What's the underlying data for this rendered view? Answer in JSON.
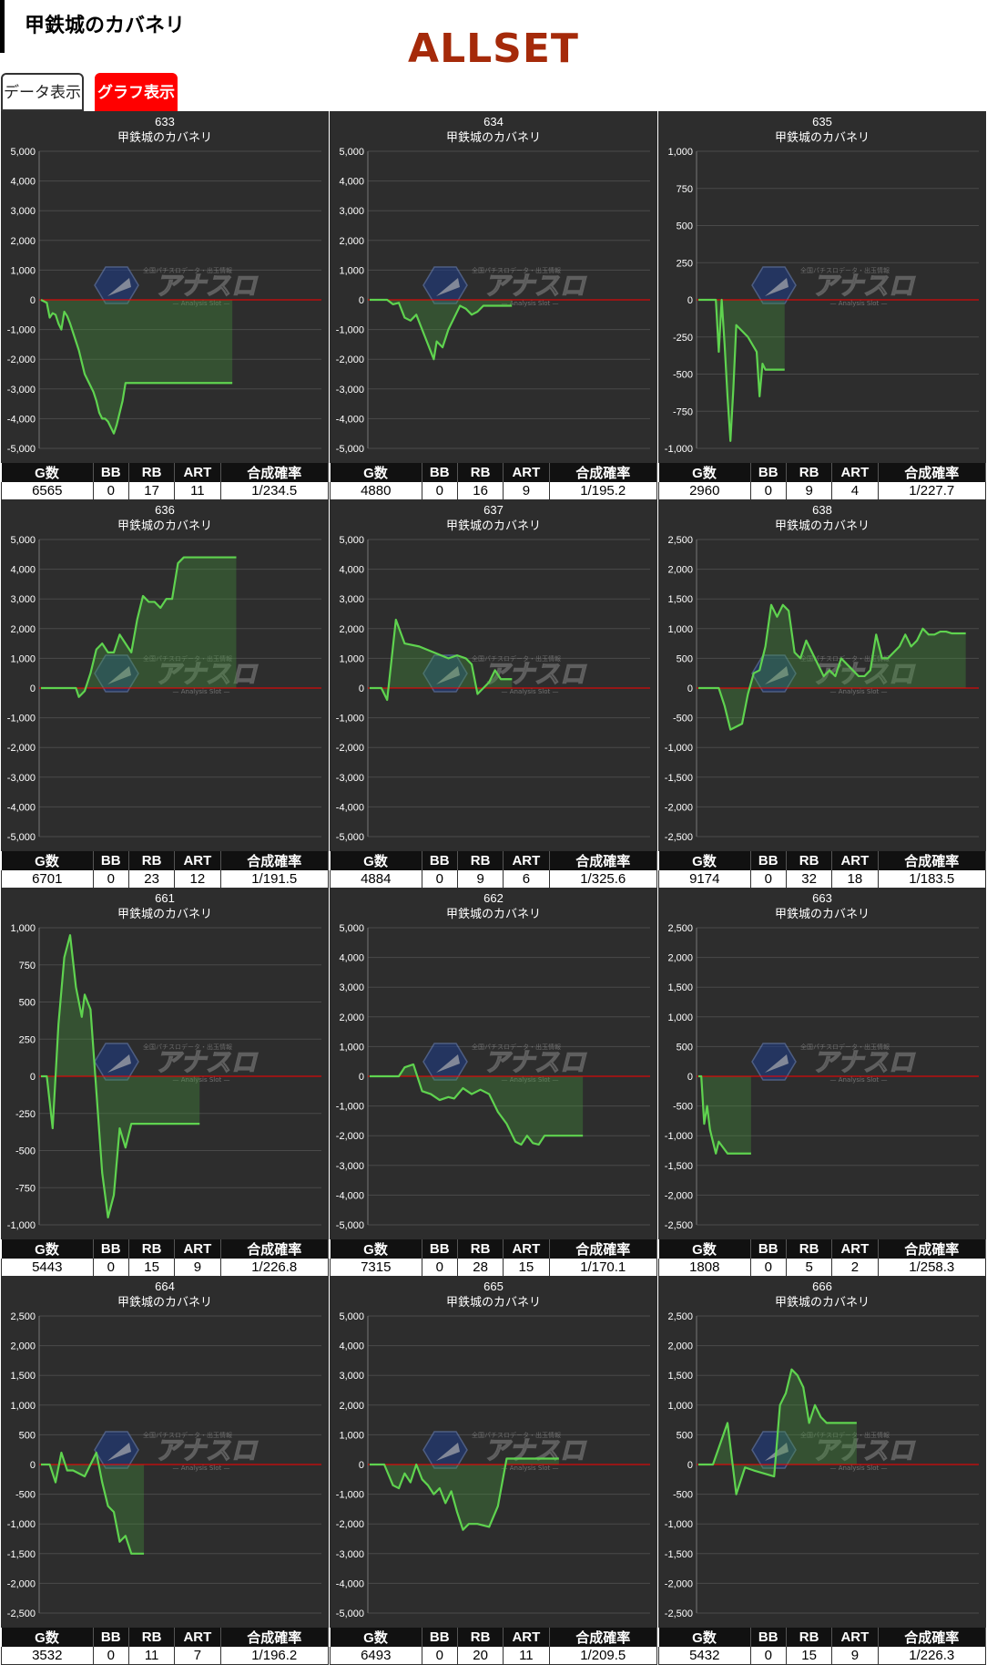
{
  "header": {
    "title": "甲鉄城のカバネリ",
    "set_label": "ALLSET"
  },
  "tabs": {
    "data_label": "データ表示",
    "graph_label": "グラフ表示"
  },
  "table_headers": [
    "G数",
    "BB",
    "RB",
    "ART",
    "合成確率"
  ],
  "watermark": {
    "brand": "アナスロ",
    "subtitle": "— Analysis Slot —",
    "tagline": "全国パチスロデータ・出玉情報"
  },
  "colors": {
    "panel_bg": "#2d2d2d",
    "line": "#5fd34f",
    "fill": "rgba(70,150,60,0.35)",
    "zero_line": "#ff0000",
    "grid": "#4a4a4a"
  },
  "machine_name": "甲鉄城のカバネリ",
  "chart_data": [
    {
      "type": "line",
      "title": "633",
      "subtitle": "甲鉄城のカバネリ",
      "ylim": [
        -5000,
        5000
      ],
      "yticks": [
        5000,
        4000,
        3000,
        2000,
        1000,
        0,
        -1000,
        -2000,
        -3000,
        -4000,
        -5000
      ],
      "x": [
        0,
        100,
        200,
        300,
        400,
        500,
        600,
        700,
        800,
        900,
        1000,
        1100,
        1200,
        1300,
        1400,
        1500,
        1600,
        1700,
        1800,
        1900,
        2000,
        2100,
        2200,
        2300,
        2400,
        2500,
        2600,
        2700,
        2800,
        2900,
        3000,
        3100,
        3200,
        3300,
        3400,
        3500,
        3600,
        3700,
        3800,
        3900,
        4000,
        4100,
        4200,
        4300,
        4400,
        4500,
        4600,
        4700,
        4800,
        4900,
        5000,
        5100,
        5200,
        5300,
        5400,
        5500,
        5600,
        5700,
        5800,
        5900,
        6000,
        6100,
        6200,
        6300,
        6400,
        6565
      ],
      "y": [
        0,
        -50,
        -100,
        -600,
        -450,
        -500,
        -800,
        -1000,
        -400,
        -550,
        -800,
        -1100,
        -1400,
        -1700,
        -2100,
        -2500,
        -2700,
        -2900,
        -3100,
        -3400,
        -3800,
        -4000,
        -4000,
        -4100,
        -4300,
        -4500,
        -4200,
        -3800,
        -3400,
        -2800,
        -2800,
        -2800,
        -2800,
        -2800,
        -2800,
        -2800,
        -2800,
        -2800,
        -2800,
        -2800,
        -2800,
        -2800,
        -2800,
        -2800,
        -2800,
        -2800,
        -2800,
        -2800,
        -2800,
        -2800,
        -2800,
        -2800,
        -2800,
        -2800,
        -2800,
        -2800,
        -2800,
        -2800,
        -2800,
        -2800,
        -2800,
        -2800,
        -2800,
        -2800,
        -2800,
        -2800
      ],
      "stats": {
        "games": "6565",
        "bb": "0",
        "rb": "17",
        "art": "11",
        "prob": "1/234.5"
      }
    },
    {
      "type": "line",
      "title": "634",
      "subtitle": "甲鉄城のカバネリ",
      "ylim": [
        -5000,
        5000
      ],
      "yticks": [
        5000,
        4000,
        3000,
        2000,
        1000,
        0,
        -1000,
        -2000,
        -3000,
        -4000,
        -5000
      ],
      "x": [
        0,
        300,
        600,
        800,
        1000,
        1200,
        1400,
        1600,
        1800,
        2000,
        2200,
        2300,
        2500,
        2700,
        2900,
        3100,
        3300,
        3500,
        3700,
        3900,
        4200,
        4500,
        4880
      ],
      "y": [
        0,
        0,
        0,
        -150,
        -100,
        -600,
        -700,
        -500,
        -1000,
        -1500,
        -2000,
        -1400,
        -1600,
        -1000,
        -600,
        -200,
        -300,
        -500,
        -400,
        -200,
        -200,
        -200,
        -200
      ],
      "stats": {
        "games": "4880",
        "bb": "0",
        "rb": "16",
        "art": "9",
        "prob": "1/195.2"
      }
    },
    {
      "type": "line",
      "title": "635",
      "subtitle": "甲鉄城のカバネリ",
      "ylim": [
        -1000,
        1000
      ],
      "yticks": [
        1000,
        750,
        500,
        250,
        0,
        -250,
        -500,
        -750,
        -1000
      ],
      "x": [
        0,
        300,
        600,
        700,
        800,
        900,
        1000,
        1100,
        1200,
        1300,
        1700,
        2000,
        2100,
        2200,
        2300,
        2400,
        2960
      ],
      "y": [
        0,
        0,
        0,
        -350,
        0,
        -300,
        -650,
        -950,
        -600,
        -170,
        -250,
        -350,
        -650,
        -430,
        -470,
        -470,
        -470
      ],
      "stats": {
        "games": "2960",
        "bb": "0",
        "rb": "9",
        "art": "4",
        "prob": "1/227.7"
      }
    },
    {
      "type": "line",
      "title": "636",
      "subtitle": "甲鉄城のカバネリ",
      "ylim": [
        -5000,
        5000
      ],
      "yticks": [
        5000,
        4000,
        3000,
        2000,
        1000,
        0,
        -1000,
        -2000,
        -3000,
        -4000,
        -5000
      ],
      "x": [
        0,
        500,
        1000,
        1200,
        1300,
        1500,
        1700,
        1900,
        2100,
        2300,
        2500,
        2700,
        2900,
        3100,
        3300,
        3500,
        3700,
        3900,
        4100,
        4300,
        4500,
        4700,
        4900,
        5100,
        5300,
        5500,
        5700,
        6000,
        6701
      ],
      "y": [
        0,
        0,
        0,
        0,
        -300,
        -100,
        500,
        1300,
        1500,
        1200,
        1200,
        1800,
        1500,
        1200,
        2300,
        3100,
        2900,
        2900,
        2700,
        3000,
        3000,
        4200,
        4400,
        4400,
        4400,
        4400,
        4400,
        4400,
        4400
      ],
      "stats": {
        "games": "6701",
        "bb": "0",
        "rb": "23",
        "art": "12",
        "prob": "1/191.5"
      }
    },
    {
      "type": "line",
      "title": "637",
      "subtitle": "甲鉄城のカバネリ",
      "ylim": [
        -5000,
        5000
      ],
      "yticks": [
        5000,
        4000,
        3000,
        2000,
        1000,
        0,
        -1000,
        -2000,
        -3000,
        -4000,
        -5000
      ],
      "x": [
        0,
        400,
        600,
        900,
        1200,
        1700,
        2200,
        2700,
        3000,
        3300,
        3500,
        3700,
        3900,
        4100,
        4300,
        4500,
        4884
      ],
      "y": [
        0,
        0,
        -400,
        2300,
        1500,
        1400,
        1200,
        1000,
        1100,
        1000,
        800,
        -200,
        0,
        200,
        600,
        300,
        300
      ],
      "stats": {
        "games": "4884",
        "bb": "0",
        "rb": "9",
        "art": "6",
        "prob": "1/325.6"
      }
    },
    {
      "type": "line",
      "title": "638",
      "subtitle": "甲鉄城のカバネリ",
      "ylim": [
        -2500,
        2500
      ],
      "yticks": [
        2500,
        2000,
        1500,
        1000,
        500,
        0,
        -500,
        -1000,
        -1500,
        -2000,
        -2500
      ],
      "x": [
        0,
        700,
        900,
        1100,
        1300,
        1500,
        1700,
        1900,
        2100,
        2300,
        2500,
        2700,
        2900,
        3100,
        3300,
        3500,
        3700,
        3900,
        4100,
        4300,
        4500,
        4700,
        4900,
        5100,
        5300,
        5500,
        5700,
        5900,
        6100,
        6300,
        6500,
        6700,
        6900,
        7100,
        7300,
        7500,
        7700,
        7900,
        8100,
        8300,
        8500,
        8700,
        8900,
        9174
      ],
      "y": [
        0,
        0,
        -300,
        -700,
        -650,
        -600,
        -100,
        250,
        300,
        700,
        1400,
        1200,
        1400,
        1300,
        600,
        500,
        800,
        600,
        400,
        200,
        300,
        200,
        500,
        400,
        300,
        200,
        200,
        300,
        900,
        500,
        500,
        600,
        700,
        900,
        700,
        800,
        1000,
        900,
        900,
        950,
        950,
        920,
        920,
        920
      ],
      "stats": {
        "games": "9174",
        "bb": "0",
        "rb": "32",
        "art": "18",
        "prob": "1/183.5"
      }
    },
    {
      "type": "line",
      "title": "661",
      "subtitle": "甲鉄城のカバネリ",
      "ylim": [
        -1000,
        1000
      ],
      "yticks": [
        1000,
        750,
        500,
        250,
        0,
        -250,
        -500,
        -750,
        -1000
      ],
      "x": [
        0,
        200,
        400,
        600,
        800,
        1000,
        1200,
        1400,
        1500,
        1700,
        1900,
        2100,
        2300,
        2500,
        2700,
        2900,
        3100,
        3300,
        3500,
        4000,
        4500,
        5000,
        5443
      ],
      "y": [
        0,
        0,
        -350,
        350,
        800,
        950,
        600,
        400,
        550,
        450,
        -100,
        -650,
        -950,
        -800,
        -350,
        -480,
        -320,
        -320,
        -320,
        -320,
        -320,
        -320,
        -320
      ],
      "stats": {
        "games": "5443",
        "bb": "0",
        "rb": "15",
        "art": "9",
        "prob": "1/226.8"
      }
    },
    {
      "type": "line",
      "title": "662",
      "subtitle": "甲鉄城のカバネリ",
      "ylim": [
        -5000,
        5000
      ],
      "yticks": [
        5000,
        4000,
        3000,
        2000,
        1000,
        0,
        -1000,
        -2000,
        -3000,
        -4000,
        -5000
      ],
      "x": [
        0,
        500,
        1000,
        1200,
        1500,
        1800,
        2100,
        2400,
        2700,
        2900,
        3200,
        3500,
        3800,
        4100,
        4400,
        4700,
        5000,
        5200,
        5400,
        5600,
        5800,
        6000,
        6500,
        7315
      ],
      "y": [
        0,
        0,
        0,
        300,
        400,
        -500,
        -600,
        -800,
        -700,
        -750,
        -400,
        -600,
        -450,
        -600,
        -1200,
        -1600,
        -2200,
        -2300,
        -2000,
        -2250,
        -2300,
        -2000,
        -2000,
        -2000
      ],
      "stats": {
        "games": "7315",
        "bb": "0",
        "rb": "28",
        "art": "15",
        "prob": "1/170.1"
      }
    },
    {
      "type": "line",
      "title": "663",
      "subtitle": "甲鉄城のカバネリ",
      "ylim": [
        -2500,
        2500
      ],
      "yticks": [
        2500,
        2000,
        1500,
        1000,
        500,
        0,
        -500,
        -1000,
        -1500,
        -2000,
        -2500
      ],
      "x": [
        0,
        100,
        200,
        300,
        400,
        500,
        600,
        700,
        1000,
        1300,
        1808
      ],
      "y": [
        0,
        0,
        -800,
        -500,
        -900,
        -1100,
        -1300,
        -1100,
        -1300,
        -1300,
        -1300
      ],
      "stats": {
        "games": "1808",
        "bb": "0",
        "rb": "5",
        "art": "2",
        "prob": "1/258.3"
      }
    },
    {
      "type": "line",
      "title": "664",
      "subtitle": "甲鉄城のカバネリ",
      "ylim": [
        -2500,
        2500
      ],
      "yticks": [
        2500,
        2000,
        1500,
        1000,
        500,
        0,
        -500,
        -1000,
        -1500,
        -2000,
        -2500
      ],
      "x": [
        0,
        300,
        500,
        700,
        900,
        1100,
        1500,
        1900,
        2100,
        2300,
        2500,
        2700,
        2900,
        3100,
        3300,
        3532
      ],
      "y": [
        0,
        0,
        -300,
        200,
        -100,
        -100,
        -200,
        200,
        -300,
        -700,
        -800,
        -1300,
        -1200,
        -1500,
        -1500,
        -1500
      ],
      "stats": {
        "games": "3532",
        "bb": "0",
        "rb": "11",
        "art": "7",
        "prob": "1/196.2"
      }
    },
    {
      "type": "line",
      "title": "665",
      "subtitle": "甲鉄城のカバネリ",
      "ylim": [
        -5000,
        5000
      ],
      "yticks": [
        5000,
        4000,
        3000,
        2000,
        1000,
        0,
        -1000,
        -2000,
        -3000,
        -4000,
        -5000
      ],
      "x": [
        0,
        500,
        800,
        1000,
        1200,
        1400,
        1600,
        1800,
        2000,
        2200,
        2400,
        2600,
        2800,
        3000,
        3200,
        3400,
        3700,
        4100,
        4400,
        4700,
        5100,
        5500,
        6000,
        6493
      ],
      "y": [
        0,
        0,
        -700,
        -800,
        -300,
        -600,
        0,
        -500,
        -700,
        -1000,
        -800,
        -1300,
        -900,
        -1600,
        -2200,
        -2000,
        -2000,
        -2100,
        -1400,
        200,
        200,
        200,
        200,
        200
      ],
      "stats": {
        "games": "6493",
        "bb": "0",
        "rb": "20",
        "art": "11",
        "prob": "1/209.5"
      }
    },
    {
      "type": "line",
      "title": "666",
      "subtitle": "甲鉄城のカバネリ",
      "ylim": [
        -2500,
        2500
      ],
      "yticks": [
        2500,
        2000,
        1500,
        1000,
        500,
        0,
        -500,
        -1000,
        -1500,
        -2000,
        -2500
      ],
      "x": [
        0,
        500,
        1000,
        1300,
        1600,
        1900,
        2600,
        2800,
        3000,
        3200,
        3400,
        3600,
        3800,
        4000,
        4200,
        4400,
        4600,
        4800,
        5000,
        5200,
        5432
      ],
      "y": [
        0,
        0,
        700,
        -500,
        -50,
        -100,
        -200,
        1000,
        1200,
        1600,
        1500,
        1300,
        700,
        1000,
        800,
        700,
        700,
        700,
        700,
        700,
        700
      ],
      "stats": {
        "games": "5432",
        "bb": "0",
        "rb": "15",
        "art": "9",
        "prob": "1/226.3"
      }
    }
  ]
}
